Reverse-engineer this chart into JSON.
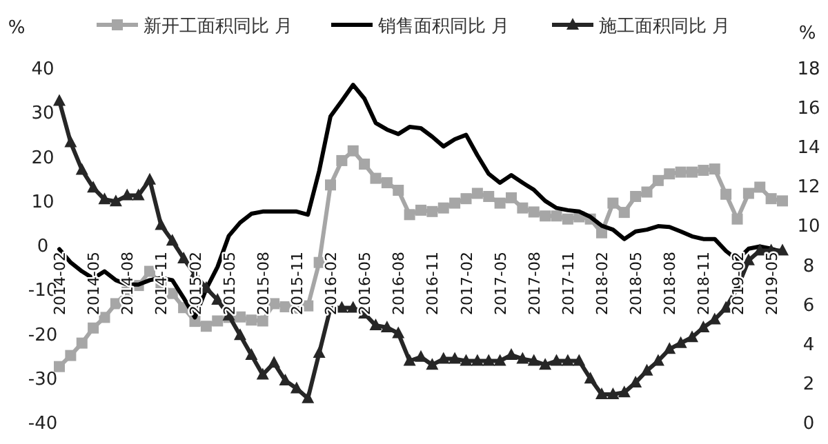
{
  "chart_data": {
    "type": "line",
    "ylabel": "%",
    "y2label": "%",
    "categories": [
      "2014-02",
      null,
      null,
      "2014-05",
      null,
      null,
      "2014-08",
      null,
      null,
      "2014-11",
      null,
      null,
      "2015-02",
      null,
      null,
      "2015-05",
      null,
      null,
      "2015-08",
      null,
      null,
      "2015-11",
      null,
      null,
      "2016-02",
      null,
      null,
      "2016-05",
      null,
      null,
      "2016-08",
      null,
      null,
      "2016-11",
      null,
      null,
      "2017-02",
      null,
      null,
      "2017-05",
      null,
      null,
      "2017-08",
      null,
      null,
      "2017-11",
      null,
      null,
      "2018-02",
      null,
      null,
      "2018-05",
      null,
      null,
      "2018-08",
      null,
      null,
      "2018-11",
      null,
      null,
      "2019-02",
      null,
      null,
      "2019-05",
      null
    ],
    "ylim": [
      -40,
      40
    ],
    "yticks": [
      -40,
      -30,
      -20,
      -10,
      0,
      10,
      20,
      30,
      40
    ],
    "y2lim": [
      0,
      18
    ],
    "y2ticks": [
      0,
      2,
      4,
      6,
      8,
      10,
      12,
      14,
      16,
      18
    ],
    "legend": "top",
    "grid": false,
    "series": [
      {
        "name": "新开工面积同比 月",
        "color": "#a6a6a6",
        "marker": "square",
        "values": [
          -27.5,
          -25,
          -22.2,
          -18.8,
          -16.4,
          -13.3,
          -10.7,
          -9.2,
          -6,
          -9,
          -11,
          -14.2,
          -17.3,
          -18.4,
          -17.2,
          -16.4,
          -16.3,
          -17,
          -17.2,
          -13.3,
          -14,
          -14.3,
          -13.8,
          -4,
          13.5,
          19,
          21.2,
          18.2,
          15,
          14,
          12.3,
          6.8,
          7.8,
          7.5,
          8.3,
          9.4,
          10.4,
          11.6,
          10.9,
          9.4,
          10.6,
          8.3,
          7.4,
          6.5,
          6.5,
          5.8,
          6.3,
          5.8,
          2.7,
          9.4,
          7.3,
          10.9,
          11.9,
          14.5,
          16,
          16.4,
          16.4,
          16.8,
          17.1,
          11.4,
          5.8,
          11.6,
          13,
          10.4,
          9.9
        ]
      },
      {
        "name": "销售面积同比 月",
        "color": "#000000",
        "marker": "none",
        "values": [
          -1,
          -4,
          -6,
          -7.6,
          -6,
          -8,
          -9,
          -9,
          -8,
          -7.5,
          -8,
          -12,
          -16.4,
          -10,
          -5,
          2,
          5,
          7,
          7.5,
          7.5,
          7.5,
          7.5,
          6.8,
          16.7,
          29,
          32.5,
          36.1,
          33,
          27.5,
          26,
          25,
          26.6,
          26.3,
          24.4,
          22.2,
          23.8,
          24.8,
          20.2,
          16,
          14,
          15.7,
          14,
          12.4,
          9.9,
          8.3,
          7.8,
          7.5,
          6.3,
          4.3,
          3.4,
          1.3,
          3,
          3.4,
          4.2,
          4,
          3,
          1.9,
          1.3,
          1.3,
          -1.4,
          -3.4,
          -0.9,
          -0.4,
          -0.9,
          -1.6
        ]
      },
      {
        "name": "施工面积同比 月",
        "color": "#262626",
        "marker": "triangle",
        "axis": "y2",
        "values": [
          16.3,
          14.2,
          12.8,
          11.9,
          11.3,
          11.2,
          11.5,
          11.5,
          12.3,
          10,
          9.2,
          8.3,
          7.5,
          6.8,
          6.2,
          5.4,
          4.4,
          3.4,
          2.4,
          3,
          2.1,
          1.7,
          1.2,
          3.5,
          5.8,
          5.8,
          5.8,
          5.5,
          4.9,
          4.8,
          4.5,
          3.1,
          3.3,
          2.9,
          3.2,
          3.2,
          3.1,
          3.1,
          3.1,
          3.1,
          3.4,
          3.2,
          3.1,
          2.9,
          3.1,
          3.1,
          3.1,
          2.2,
          1.4,
          1.4,
          1.5,
          2,
          2.6,
          3.1,
          3.7,
          4,
          4.3,
          4.8,
          5.2,
          5.8,
          6.8,
          8.2,
          8.7,
          8.7,
          8.7
        ]
      }
    ]
  }
}
